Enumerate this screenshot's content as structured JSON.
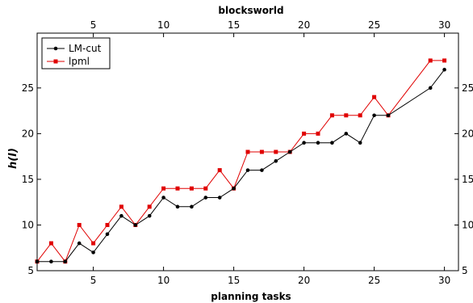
{
  "chart_data": {
    "type": "line",
    "title": "blocksworld",
    "xlabel": "planning tasks",
    "ylabel": "h(I)",
    "xlim": [
      1,
      31
    ],
    "ylim": [
      5,
      31
    ],
    "xticks": [
      5,
      10,
      15,
      20,
      25,
      30
    ],
    "yticks": [
      5,
      10,
      15,
      20,
      25
    ],
    "grid": false,
    "legend_position": "top-left",
    "series": [
      {
        "name": "LM-cut",
        "color": "#000000",
        "marker": "circle",
        "points": [
          [
            1,
            6
          ],
          [
            2,
            6
          ],
          [
            3,
            6
          ],
          [
            4,
            8
          ],
          [
            5,
            7
          ],
          [
            6,
            9
          ],
          [
            7,
            11
          ],
          [
            8,
            10
          ],
          [
            9,
            11
          ],
          [
            10,
            13
          ],
          [
            11,
            12
          ],
          [
            12,
            12
          ],
          [
            13,
            13
          ],
          [
            14,
            13
          ],
          [
            15,
            14
          ],
          [
            16,
            16
          ],
          [
            17,
            16
          ],
          [
            18,
            17
          ],
          [
            19,
            18
          ],
          [
            20,
            19
          ],
          [
            21,
            19
          ],
          [
            22,
            19
          ],
          [
            23,
            20
          ],
          [
            24,
            19
          ],
          [
            25,
            22
          ],
          [
            26,
            22
          ],
          [
            29,
            25
          ],
          [
            30,
            27
          ]
        ]
      },
      {
        "name": "lpml",
        "color": "#e00000",
        "marker": "square",
        "points": [
          [
            1,
            6
          ],
          [
            2,
            8
          ],
          [
            3,
            6
          ],
          [
            4,
            10
          ],
          [
            5,
            8
          ],
          [
            6,
            10
          ],
          [
            7,
            12
          ],
          [
            8,
            10
          ],
          [
            9,
            12
          ],
          [
            10,
            14
          ],
          [
            11,
            14
          ],
          [
            12,
            14
          ],
          [
            13,
            14
          ],
          [
            14,
            16
          ],
          [
            15,
            14
          ],
          [
            16,
            18
          ],
          [
            17,
            18
          ],
          [
            18,
            18
          ],
          [
            19,
            18
          ],
          [
            20,
            20
          ],
          [
            21,
            20
          ],
          [
            22,
            22
          ],
          [
            23,
            22
          ],
          [
            24,
            22
          ],
          [
            25,
            24
          ],
          [
            26,
            22
          ],
          [
            29,
            28
          ],
          [
            30,
            28
          ]
        ]
      }
    ]
  }
}
